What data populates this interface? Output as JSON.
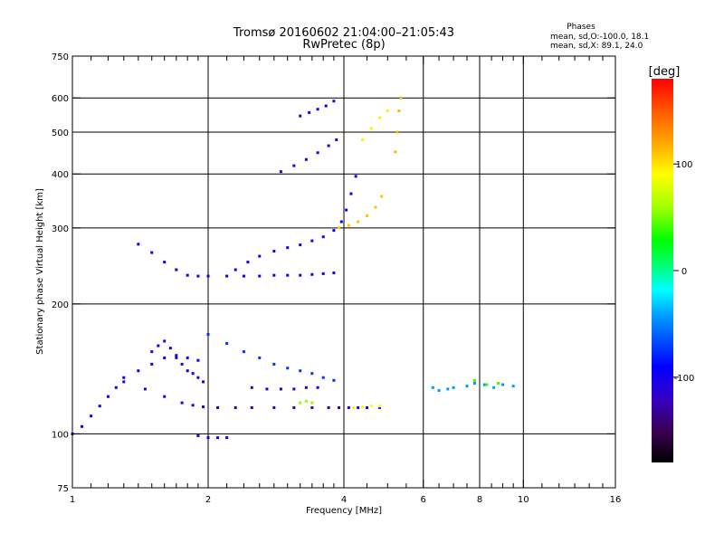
{
  "chart_data": {
    "type": "scatter",
    "title": "Tromsø 20160602 21:04:00–21:05:43",
    "subtitle": "RwPretec (8p)",
    "xlabel": "Frequency [MHz]",
    "ylabel": "Stationary phase Virtual Height [km]",
    "x_scale": "log",
    "y_scale": "log",
    "xlim": [
      1,
      16
    ],
    "ylim": [
      75,
      750
    ],
    "x_ticks": [
      1,
      2,
      4,
      6,
      8,
      10,
      16
    ],
    "x_tick_labels": [
      "1",
      "2",
      "4",
      "6",
      "8",
      "10",
      "16"
    ],
    "x_grid": [
      2,
      4,
      6,
      8,
      10
    ],
    "x_minor_ticks": [
      1.1,
      1.2,
      1.3,
      1.4,
      1.5,
      1.6,
      1.7,
      1.8,
      1.9,
      2.2,
      2.4,
      2.6,
      2.8,
      3,
      3.2,
      3.4,
      3.6,
      3.8,
      4.5,
      5,
      5.5,
      6.5,
      7,
      7.5,
      8.5,
      9,
      9.5,
      11,
      12,
      13,
      14,
      15
    ],
    "y_ticks": [
      75,
      100,
      200,
      300,
      400,
      500,
      600,
      750
    ],
    "y_tick_labels": [
      "75",
      "100",
      "200",
      "300",
      "400",
      "500",
      "600",
      "750"
    ],
    "y_grid": [
      100,
      200,
      300,
      400,
      500,
      600
    ],
    "grid": true,
    "phase_stats": {
      "heading": "Phases",
      "line1": "mean, sd,O:-100.0, 18.1",
      "line2": "mean, sd,X:  89.1, 24.0"
    },
    "colorbar": {
      "label": "[deg]",
      "range": [
        -180,
        180
      ],
      "ticks": [
        100,
        0,
        -100
      ],
      "tick_labels": [
        "100",
        "0",
        "-100"
      ],
      "colors": [
        "#000000",
        "#3a0050",
        "#3300cc",
        "#0000ff",
        "#0099ff",
        "#00ffff",
        "#00ff66",
        "#00ff00",
        "#99ff00",
        "#ffff00",
        "#ffaa00",
        "#ff5500",
        "#ff0000"
      ]
    },
    "series": [
      {
        "phase": -105,
        "x": [
          1.3,
          1.45,
          1.6,
          1.75,
          1.85,
          1.95,
          2.1,
          2.3,
          2.5,
          2.8,
          3.1,
          3.4,
          3.7,
          3.9,
          4.1,
          4.3,
          4.5,
          4.8
        ],
        "y": [
          132,
          127,
          122,
          118,
          116.5,
          115.5,
          115,
          115,
          115,
          115,
          115,
          115,
          115,
          115,
          115,
          115,
          115,
          115
        ]
      },
      {
        "phase": -100,
        "x": [
          2.3,
          2.45,
          2.6,
          2.8,
          3.0,
          3.2,
          3.4,
          3.6,
          3.8,
          3.95,
          4.05,
          4.15,
          4.25
        ],
        "y": [
          240,
          250,
          258,
          265,
          270,
          274,
          280,
          286,
          296,
          310,
          330,
          360,
          395
        ]
      },
      {
        "phase": -100,
        "x": [
          1.8,
          1.9,
          2.0,
          2.2,
          2.4,
          2.6,
          2.8,
          3.0,
          3.2,
          3.4,
          3.6,
          3.8
        ],
        "y": [
          233,
          232,
          232,
          232,
          232,
          232,
          233,
          233,
          233,
          234,
          235,
          236
        ]
      },
      {
        "phase": -95,
        "x": [
          1.4,
          1.5,
          1.6,
          1.7
        ],
        "y": [
          275,
          263,
          250,
          240
        ]
      },
      {
        "phase": -110,
        "x": [
          2.9,
          3.1,
          3.3,
          3.5,
          3.7,
          3.85
        ],
        "y": [
          405,
          418,
          432,
          448,
          465,
          480
        ]
      },
      {
        "phase": -110,
        "x": [
          3.2,
          3.35,
          3.5,
          3.65,
          3.8
        ],
        "y": [
          545,
          555,
          565,
          575,
          590
        ]
      },
      {
        "phase": -95,
        "x": [
          1.0,
          1.05,
          1.1,
          1.15,
          1.2,
          1.25,
          1.3,
          1.4,
          1.5,
          1.6,
          1.7,
          1.8,
          1.9
        ],
        "y": [
          100,
          104,
          110,
          116,
          122,
          128,
          135,
          140,
          145,
          150,
          152,
          150,
          148
        ]
      },
      {
        "phase": -105,
        "x": [
          1.5,
          1.55,
          1.6,
          1.65,
          1.7,
          1.75,
          1.8,
          1.85,
          1.9,
          1.95
        ],
        "y": [
          155,
          160,
          164,
          158,
          150,
          145,
          140,
          138,
          135,
          132
        ]
      },
      {
        "phase": -80,
        "x": [
          2.0,
          2.2,
          2.4,
          2.6,
          2.8,
          3.0,
          3.2,
          3.4,
          3.6,
          3.8
        ],
        "y": [
          170,
          162,
          155,
          150,
          145,
          142,
          140,
          138,
          135,
          133
        ]
      },
      {
        "phase": -100,
        "x": [
          2.5,
          2.7,
          2.9,
          3.1,
          3.3,
          3.5
        ],
        "y": [
          128,
          127,
          127,
          127,
          128,
          128
        ]
      },
      {
        "phase": -100,
        "x": [
          1.9,
          2.0,
          2.1,
          2.2
        ],
        "y": [
          99,
          98,
          98,
          98
        ]
      },
      {
        "phase": 110,
        "x": [
          3.9,
          4.1,
          4.3,
          4.5,
          4.7,
          4.85
        ],
        "y": [
          300,
          304,
          310,
          320,
          335,
          355
        ]
      },
      {
        "phase": 95,
        "x": [
          4.4,
          4.6,
          4.8,
          5.0
        ],
        "y": [
          480,
          510,
          540,
          560
        ]
      },
      {
        "phase": 115,
        "x": [
          5.2,
          5.25,
          5.3,
          5.35
        ],
        "y": [
          450,
          500,
          560,
          600
        ]
      },
      {
        "phase": 90,
        "x": [
          4.2,
          4.4,
          4.6,
          4.8
        ],
        "y": [
          115,
          115.5,
          116,
          116
        ]
      },
      {
        "phase": 60,
        "x": [
          3.2,
          3.3,
          3.4
        ],
        "y": [
          118,
          119,
          118
        ]
      },
      {
        "phase": -60,
        "x": [
          6.3,
          6.5,
          6.8,
          7.0,
          7.5,
          7.8,
          8.2,
          8.6,
          9.0,
          9.5
        ],
        "y": [
          128,
          126,
          127,
          128,
          129,
          131,
          130,
          128,
          130,
          129
        ]
      },
      {
        "phase": 40,
        "x": [
          7.8,
          8.3,
          8.8
        ],
        "y": [
          133,
          130,
          131
        ]
      }
    ]
  }
}
